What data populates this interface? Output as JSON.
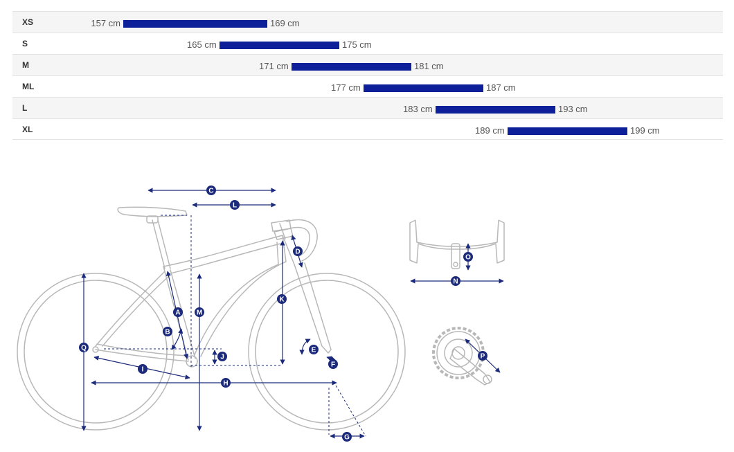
{
  "size_chart": {
    "rows": [
      {
        "size": "XS",
        "min": 157,
        "max": 169,
        "min_label": "157 cm",
        "max_label": "169 cm"
      },
      {
        "size": "S",
        "min": 165,
        "max": 175,
        "min_label": "165 cm",
        "max_label": "175 cm"
      },
      {
        "size": "M",
        "min": 171,
        "max": 181,
        "min_label": "171 cm",
        "max_label": "181 cm"
      },
      {
        "size": "ML",
        "min": 177,
        "max": 187,
        "min_label": "177 cm",
        "max_label": "187 cm"
      },
      {
        "size": "L",
        "min": 183,
        "max": 193,
        "min_label": "183 cm",
        "max_label": "193 cm"
      },
      {
        "size": "XL",
        "min": 189,
        "max": 199,
        "min_label": "189 cm",
        "max_label": "199 cm"
      }
    ],
    "bar_color": "#0e1f9a"
  },
  "geometry": {
    "markers": {
      "A": "A",
      "B": "B",
      "C": "C",
      "D": "D",
      "E": "E",
      "F": "F",
      "G": "G",
      "H": "H",
      "I": "I",
      "J": "J",
      "K": "K",
      "L": "L",
      "M": "M",
      "N": "N",
      "O": "O",
      "P": "P",
      "Q": "Q"
    },
    "colors": {
      "accent": "#1b2a7a",
      "outline": "#b5b5b5"
    }
  }
}
